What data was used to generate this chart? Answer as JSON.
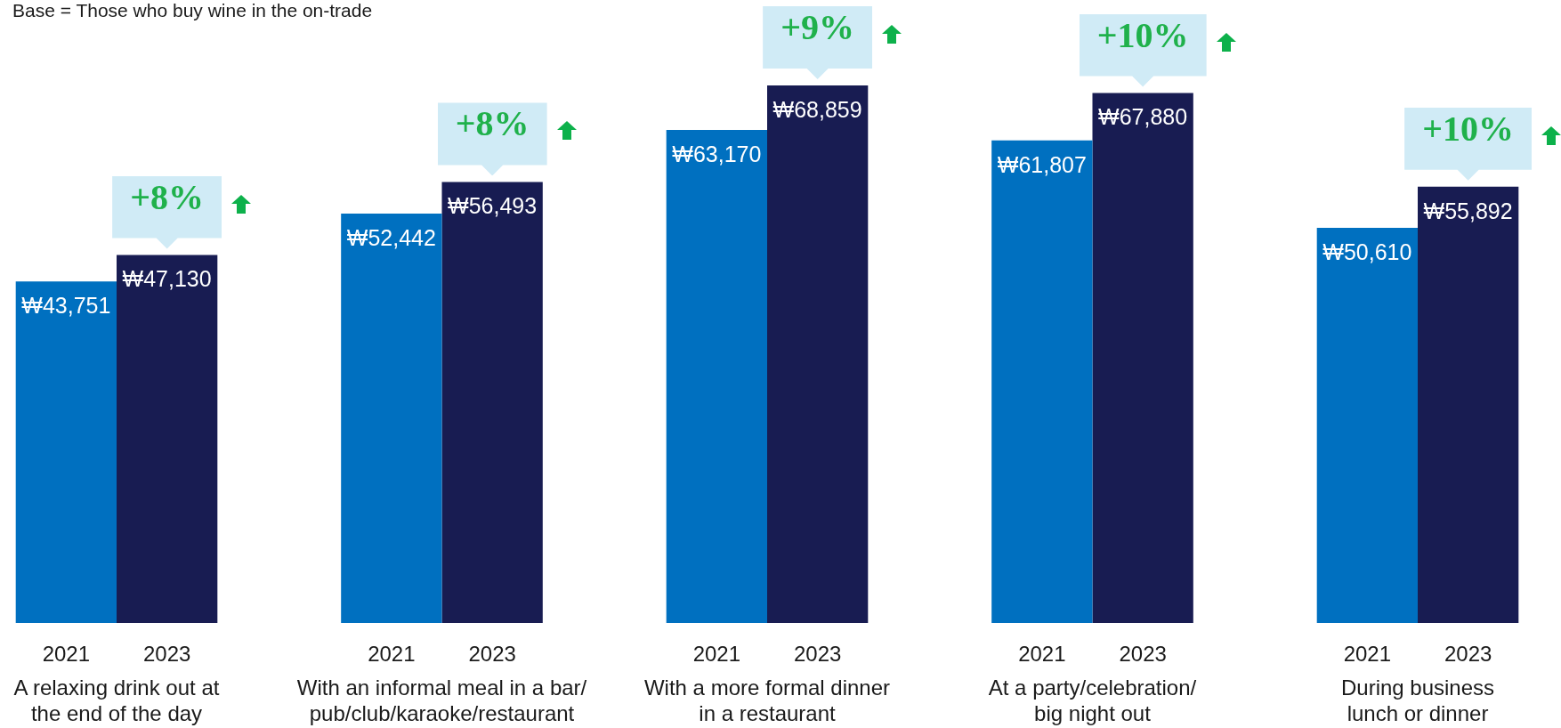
{
  "chart_data": {
    "type": "bar",
    "categories": [
      "A relaxing drink out at\nthe end of the day",
      "With an informal meal in a bar/\npub/club/karaoke/restaurant",
      "With a more formal dinner\nin a restaurant",
      "At a party/celebration/\nbig night out",
      "During business\nlunch or dinner"
    ],
    "series": [
      {
        "name": "2021",
        "color": "#0070c0",
        "values": [
          43751,
          52442,
          63170,
          61807,
          50610
        ],
        "value_labels": [
          "₩43,751",
          "₩52,442",
          "₩63,170",
          "₩61,807",
          "₩50,610"
        ]
      },
      {
        "name": "2023",
        "color": "#181c52",
        "values": [
          47130,
          56493,
          68859,
          67880,
          55892
        ],
        "value_labels": [
          "₩47,130",
          "₩56,493",
          "₩68,859",
          "₩67,880",
          "₩55,892"
        ]
      }
    ],
    "tick_labels": "x",
    "annotations": [
      "Base = Those who buy wine in the on-trade",
      {
        "text": "+8%",
        "x": "A relaxing drink out at\nthe end of the day",
        "y": 47130
      },
      {
        "text": "+8%",
        "x": "With an informal meal in a bar/\npub/club/karaoke/restaurant",
        "y": 56493
      },
      {
        "text": "+9%",
        "x": "With a more formal dinner\nin a restaurant",
        "y": 68859
      },
      {
        "text": "+10%",
        "x": "At a party/celebration/\nbig night out",
        "y": 67880
      },
      {
        "text": "+10%",
        "x": "During business\nlunch or dinner",
        "y": 55892
      }
    ]
  }
}
